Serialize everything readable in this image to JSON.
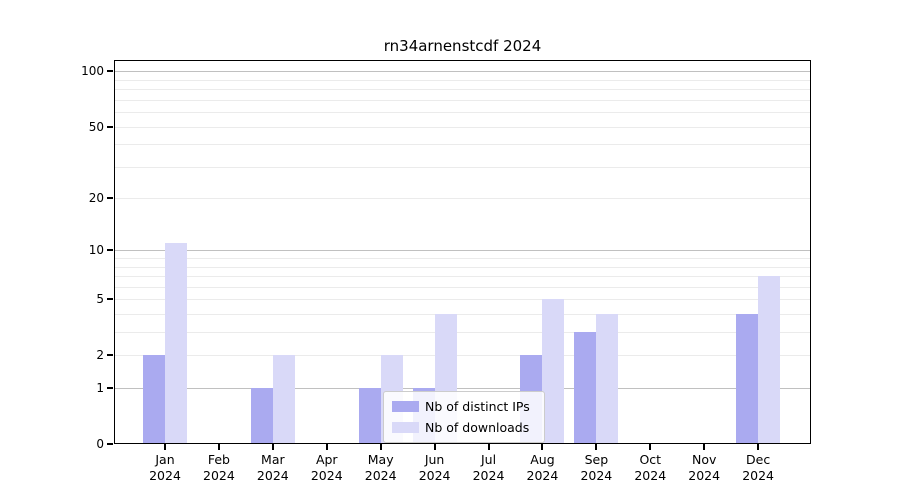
{
  "chart_data": {
    "type": "bar",
    "title": "rn34arnenstcdf 2024",
    "x": {
      "months": [
        "Jan",
        "Feb",
        "Mar",
        "Apr",
        "May",
        "Jun",
        "Jul",
        "Aug",
        "Sep",
        "Oct",
        "Nov",
        "Dec"
      ],
      "year": "2024"
    },
    "series": [
      {
        "name": "Nb of distinct IPs",
        "color": "#aaaaf0",
        "values": [
          2,
          0,
          1,
          0,
          1,
          1,
          0,
          2,
          3,
          0,
          0,
          4
        ]
      },
      {
        "name": "Nb of downloads",
        "color": "#d9d9f8",
        "values": [
          11,
          0,
          2,
          0,
          2,
          4,
          0,
          5,
          4,
          0,
          0,
          7
        ]
      }
    ],
    "y_axis": {
      "scale": "log1p",
      "tick_values": [
        0,
        1,
        2,
        5,
        10,
        20,
        50,
        100
      ],
      "major_gridlines": [
        1,
        10,
        100
      ],
      "minor_gridlines": [
        2,
        3,
        4,
        5,
        6,
        7,
        8,
        9,
        20,
        30,
        40,
        50,
        60,
        70,
        80,
        90
      ],
      "ylim": [
        0,
        115
      ]
    },
    "legend": {
      "entries": [
        "Nb of distinct IPs",
        "Nb of downloads"
      ],
      "position": "lower-center"
    },
    "grid": true,
    "colors": {
      "major_gridline": "#c0c0c0",
      "minor_gridline": "#ebebeb",
      "axis": "#000000",
      "background": "#ffffff"
    }
  }
}
